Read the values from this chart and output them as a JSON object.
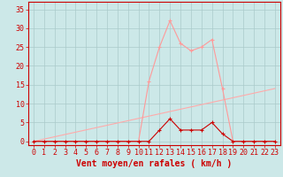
{
  "title": "",
  "xlabel": "Vent moyen/en rafales ( km/h )",
  "ylabel": "",
  "bg_color": "#cce8e8",
  "grid_color": "#aacaca",
  "x_ticks": [
    0,
    1,
    2,
    3,
    4,
    5,
    6,
    7,
    8,
    9,
    10,
    11,
    12,
    13,
    14,
    15,
    16,
    17,
    18,
    19,
    20,
    21,
    22,
    23
  ],
  "y_ticks": [
    0,
    5,
    10,
    15,
    20,
    25,
    30,
    35
  ],
  "ylim": [
    -1,
    37
  ],
  "xlim": [
    -0.5,
    23.5
  ],
  "line1_x": [
    0,
    1,
    2,
    3,
    4,
    5,
    6,
    7,
    8,
    9,
    10,
    11,
    12,
    13,
    14,
    15,
    16,
    17,
    18,
    19,
    20,
    21,
    22,
    23
  ],
  "line1_y": [
    0,
    0,
    0,
    0,
    0,
    0,
    0,
    0,
    0,
    0,
    0,
    16,
    25,
    32,
    26,
    24,
    25,
    27,
    14,
    0,
    0,
    0,
    0,
    0
  ],
  "line1_color": "#ff9999",
  "line2_x": [
    0,
    1,
    2,
    3,
    4,
    5,
    6,
    7,
    8,
    9,
    10,
    11,
    12,
    13,
    14,
    15,
    16,
    17,
    18,
    19,
    20,
    21,
    22,
    23
  ],
  "line2_y": [
    0,
    0,
    0,
    0,
    0,
    0,
    0,
    0,
    0,
    0,
    0,
    0,
    3,
    6,
    3,
    3,
    3,
    5,
    2,
    0,
    0,
    0,
    0,
    0
  ],
  "line2_color": "#cc0000",
  "line3_x": [
    0,
    23
  ],
  "line3_y": [
    0,
    14
  ],
  "line3_color": "#ffaaaa",
  "axis_color": "#cc0000",
  "tick_color": "#cc0000",
  "label_color": "#cc0000",
  "marker_size": 2.5,
  "font_size": 6
}
